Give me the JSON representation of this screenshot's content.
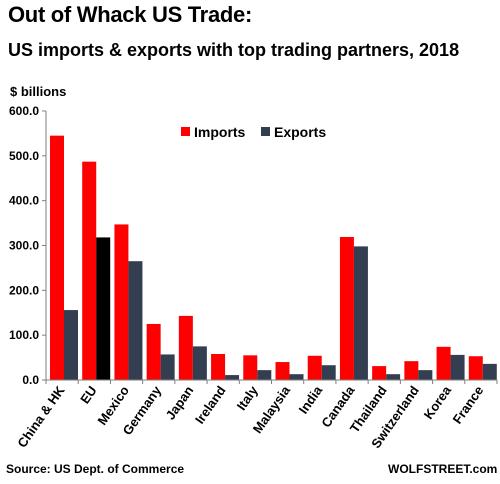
{
  "title": "Out of Whack US Trade:",
  "subtitle": "US imports & exports with top trading partners, 2018",
  "y_unit": "$ billions",
  "source": "Source: US Dept. of Commerce",
  "brand": "WOLFSTREET.com",
  "colors": {
    "imports": "#ff0000",
    "exports": "#333f50",
    "eu_exports": "#000000",
    "axis": "#7f7f7f"
  },
  "chart_data": {
    "type": "bar",
    "categories": [
      "China & HK",
      "EU",
      "Mexico",
      "Germany",
      "Japan",
      "Ireland",
      "Italy",
      "Malaysia",
      "India",
      "Canada",
      "Thailand",
      "Switzerland",
      "Korea",
      "France"
    ],
    "series": [
      {
        "name": "Imports",
        "values": [
          545,
          487,
          347,
          125,
          143,
          58,
          55,
          40,
          54,
          319,
          31,
          42,
          74,
          53
        ]
      },
      {
        "name": "Exports",
        "values": [
          156,
          318,
          265,
          57,
          75,
          11,
          22,
          13,
          33,
          298,
          13,
          22,
          56,
          36
        ]
      }
    ],
    "y_ticks": [
      "0.0",
      "100.0",
      "200.0",
      "300.0",
      "400.0",
      "500.0",
      "600.0"
    ],
    "ylim": [
      0,
      600
    ],
    "legend_position": "top-center",
    "grid": false
  }
}
